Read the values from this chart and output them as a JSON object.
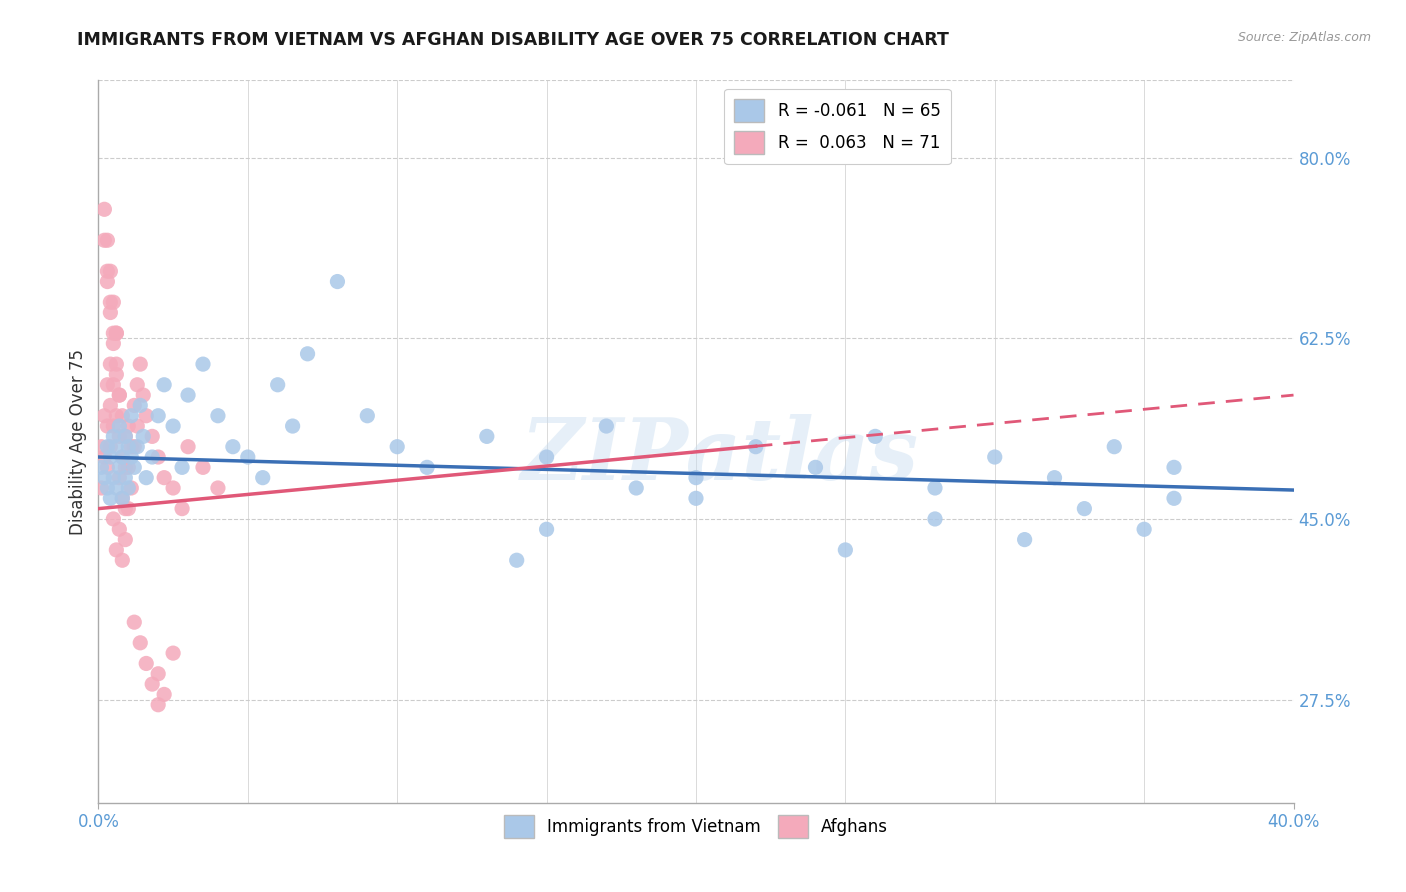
{
  "title": "IMMIGRANTS FROM VIETNAM VS AFGHAN DISABILITY AGE OVER 75 CORRELATION CHART",
  "source_text": "Source: ZipAtlas.com",
  "ylabel": "Disability Age Over 75",
  "xlim": [
    0.0,
    0.4
  ],
  "ylim": [
    0.175,
    0.875
  ],
  "ytick_labels_right": [
    "27.5%",
    "45.0%",
    "62.5%",
    "80.0%"
  ],
  "ytick_vals_right": [
    0.275,
    0.45,
    0.625,
    0.8
  ],
  "legend_entries": [
    {
      "color": "#aac8e8",
      "text": "R = -0.061   N = 65"
    },
    {
      "color": "#f4aabb",
      "text": "R =  0.063   N = 71"
    }
  ],
  "bottom_legend": [
    {
      "color": "#aac8e8",
      "label": "Immigrants from Vietnam"
    },
    {
      "color": "#f4aabb",
      "label": "Afghans"
    }
  ],
  "vietnam_color": "#aac8e8",
  "afghan_color": "#f4aabb",
  "vietnam_trendline_color": "#3a6fb5",
  "afghan_trendline_color": "#e05878",
  "background_color": "#ffffff",
  "grid_color": "#cccccc",
  "right_axis_color": "#5b9bd5",
  "vietnam_scatter_x": [
    0.001,
    0.002,
    0.003,
    0.003,
    0.004,
    0.004,
    0.005,
    0.005,
    0.006,
    0.006,
    0.007,
    0.007,
    0.008,
    0.008,
    0.009,
    0.009,
    0.01,
    0.01,
    0.011,
    0.011,
    0.012,
    0.013,
    0.014,
    0.015,
    0.016,
    0.018,
    0.02,
    0.022,
    0.025,
    0.028,
    0.03,
    0.035,
    0.04,
    0.045,
    0.05,
    0.055,
    0.06,
    0.065,
    0.07,
    0.08,
    0.09,
    0.1,
    0.11,
    0.13,
    0.15,
    0.17,
    0.2,
    0.22,
    0.24,
    0.26,
    0.28,
    0.3,
    0.32,
    0.34,
    0.36,
    0.15,
    0.2,
    0.25,
    0.28,
    0.31,
    0.33,
    0.35,
    0.36,
    0.14,
    0.18
  ],
  "vietnam_scatter_y": [
    0.5,
    0.49,
    0.52,
    0.48,
    0.51,
    0.47,
    0.53,
    0.49,
    0.52,
    0.48,
    0.5,
    0.54,
    0.51,
    0.47,
    0.53,
    0.49,
    0.52,
    0.48,
    0.51,
    0.55,
    0.5,
    0.52,
    0.56,
    0.53,
    0.49,
    0.51,
    0.55,
    0.58,
    0.54,
    0.5,
    0.57,
    0.6,
    0.55,
    0.52,
    0.51,
    0.49,
    0.58,
    0.54,
    0.61,
    0.68,
    0.55,
    0.52,
    0.5,
    0.53,
    0.51,
    0.54,
    0.49,
    0.52,
    0.5,
    0.53,
    0.48,
    0.51,
    0.49,
    0.52,
    0.5,
    0.44,
    0.47,
    0.42,
    0.45,
    0.43,
    0.46,
    0.44,
    0.47,
    0.41,
    0.48
  ],
  "afghan_scatter_x": [
    0.001,
    0.001,
    0.002,
    0.002,
    0.003,
    0.003,
    0.003,
    0.004,
    0.004,
    0.004,
    0.005,
    0.005,
    0.005,
    0.006,
    0.006,
    0.006,
    0.007,
    0.007,
    0.007,
    0.008,
    0.008,
    0.008,
    0.009,
    0.009,
    0.009,
    0.01,
    0.01,
    0.01,
    0.011,
    0.011,
    0.012,
    0.012,
    0.013,
    0.013,
    0.014,
    0.015,
    0.016,
    0.018,
    0.02,
    0.022,
    0.025,
    0.028,
    0.03,
    0.035,
    0.04,
    0.005,
    0.006,
    0.007,
    0.008,
    0.009,
    0.003,
    0.004,
    0.002,
    0.003,
    0.004,
    0.005,
    0.006,
    0.007,
    0.002,
    0.003,
    0.004,
    0.005,
    0.006,
    0.02,
    0.022,
    0.025,
    0.012,
    0.014,
    0.016,
    0.018,
    0.02
  ],
  "afghan_scatter_y": [
    0.52,
    0.48,
    0.55,
    0.51,
    0.58,
    0.54,
    0.5,
    0.6,
    0.56,
    0.52,
    0.62,
    0.58,
    0.54,
    0.63,
    0.59,
    0.55,
    0.57,
    0.53,
    0.49,
    0.55,
    0.51,
    0.47,
    0.53,
    0.5,
    0.46,
    0.54,
    0.5,
    0.46,
    0.52,
    0.48,
    0.56,
    0.52,
    0.58,
    0.54,
    0.6,
    0.57,
    0.55,
    0.53,
    0.51,
    0.49,
    0.48,
    0.46,
    0.52,
    0.5,
    0.48,
    0.45,
    0.42,
    0.44,
    0.41,
    0.43,
    0.68,
    0.65,
    0.72,
    0.69,
    0.66,
    0.63,
    0.6,
    0.57,
    0.75,
    0.72,
    0.69,
    0.66,
    0.63,
    0.3,
    0.28,
    0.32,
    0.35,
    0.33,
    0.31,
    0.29,
    0.27
  ],
  "viet_trend_x0": 0.0,
  "viet_trend_y0": 0.51,
  "viet_trend_x1": 0.4,
  "viet_trend_y1": 0.478,
  "afghan_trend_x0": 0.0,
  "afghan_trend_y0": 0.46,
  "afghan_trend_x1": 0.4,
  "afghan_trend_y1": 0.57
}
